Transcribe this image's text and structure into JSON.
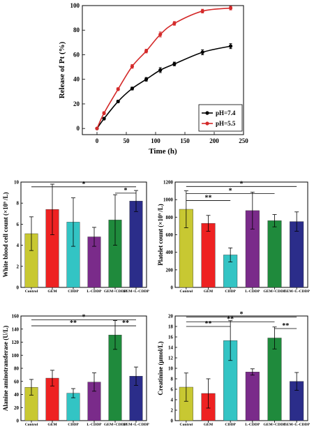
{
  "chart_data": [
    {
      "type": "line",
      "xlabel": "Time (h)",
      "ylabel": "Release of Pt (%)",
      "xlim": [
        -25,
        250
      ],
      "ylim": [
        -5,
        100
      ],
      "xticks": [
        0,
        50,
        100,
        150,
        200,
        250
      ],
      "yticks": [
        0,
        20,
        40,
        60,
        80,
        100
      ],
      "legend_position": "bottom-right",
      "series": [
        {
          "name": "pH=7.4",
          "color": "#000000",
          "x": [
            0,
            12,
            36,
            60,
            84,
            108,
            132,
            180,
            228
          ],
          "y": [
            0,
            8,
            22,
            32.5,
            40,
            47.5,
            52.5,
            62,
            67
          ],
          "err": [
            0.5,
            1,
            1,
            1.2,
            1.5,
            2,
            1.5,
            2,
            2
          ]
        },
        {
          "name": "pH=5.5",
          "color": "#d42a2a",
          "x": [
            0,
            12,
            36,
            60,
            84,
            108,
            132,
            180,
            228
          ],
          "y": [
            0,
            12.5,
            32,
            50.5,
            63,
            76.5,
            85.5,
            95.5,
            98
          ],
          "err": [
            0.5,
            1.2,
            1.2,
            1.5,
            1.5,
            2,
            1.5,
            1.5,
            1.5
          ]
        }
      ]
    },
    {
      "type": "bar",
      "ylabel": "White blood cell count (×10⁹ /L)",
      "ylim": [
        0,
        10
      ],
      "yticks": [
        0,
        2,
        4,
        6,
        8,
        10
      ],
      "categories": [
        "Control",
        "GEM",
        "CDDP",
        "L-CDDP",
        "GEM+CDDP",
        "GEM+L-CDDP"
      ],
      "values": [
        5.1,
        7.4,
        6.2,
        4.8,
        6.4,
        8.2
      ],
      "errors": [
        1.6,
        2.4,
        2.3,
        0.9,
        2.4,
        1.0
      ],
      "colors": [
        "#c8c832",
        "#ee2222",
        "#33c4c4",
        "#7a2b8a",
        "#1f8a3c",
        "#2b2d8a"
      ],
      "significance": [
        {
          "from": 0,
          "to": 5,
          "label": "*",
          "y": 9.55
        },
        {
          "from": 4,
          "to": 5,
          "label": "*",
          "y": 8.95
        }
      ]
    },
    {
      "type": "bar",
      "ylabel": "Platelet count (×10⁹ /L)",
      "ylim": [
        0,
        1200
      ],
      "yticks": [
        0,
        200,
        400,
        600,
        800,
        1000,
        1200
      ],
      "categories": [
        "Control",
        "GEM",
        "CDDP",
        "L-CDDP",
        "GEM+CDDP",
        "GEM+L-CDDP"
      ],
      "values": [
        890,
        730,
        370,
        875,
        760,
        750
      ],
      "errors": [
        210,
        90,
        80,
        210,
        70,
        110
      ],
      "colors": [
        "#c8c832",
        "#ee2222",
        "#33c4c4",
        "#7a2b8a",
        "#1f8a3c",
        "#2b2d8a"
      ],
      "significance": [
        {
          "from": 0,
          "to": 5,
          "label": "*",
          "y": 1150
        },
        {
          "from": 0,
          "to": 4,
          "label": "*",
          "y": 1070
        },
        {
          "from": 0,
          "to": 2,
          "label": "**",
          "y": 990
        }
      ]
    },
    {
      "type": "bar",
      "ylabel": "Alanine aminotransferase (U/L)",
      "ylim": [
        0,
        160
      ],
      "yticks": [
        0,
        20,
        40,
        60,
        80,
        100,
        120,
        140,
        160
      ],
      "categories": [
        "Control",
        "GEM",
        "CDDP",
        "L-CDDP",
        "GEM+CDDP",
        "GEM+L-CDDP"
      ],
      "values": [
        51,
        65,
        42,
        59,
        131,
        68
      ],
      "errors": [
        12,
        12,
        7,
        14,
        22,
        14
      ],
      "colors": [
        "#c8c832",
        "#ee2222",
        "#33c4c4",
        "#7a2b8a",
        "#1f8a3c",
        "#2b2d8a"
      ],
      "significance": [
        {
          "from": 0,
          "to": 5,
          "label": "*",
          "y": 154
        },
        {
          "from": 0,
          "to": 4,
          "label": "**",
          "y": 145
        },
        {
          "from": 4,
          "to": 5,
          "label": "**",
          "y": 145
        }
      ]
    },
    {
      "type": "bar",
      "ylabel": "Creatinine (μmol/L)",
      "ylim": [
        0,
        20
      ],
      "yticks": [
        0,
        2,
        4,
        6,
        8,
        10,
        12,
        14,
        16,
        18,
        20
      ],
      "categories": [
        "Control",
        "GEM",
        "CDDP",
        "L-CDDP",
        "GEM+CDDP",
        "GEM+L-CDDP"
      ],
      "values": [
        6.4,
        5.2,
        15.3,
        9.3,
        15.8,
        7.5
      ],
      "errors": [
        2.7,
        2.8,
        3.8,
        0.6,
        2.1,
        1.7
      ],
      "colors": [
        "#c8c832",
        "#ee2222",
        "#33c4c4",
        "#7a2b8a",
        "#1f8a3c",
        "#2b2d8a"
      ],
      "significance": [
        {
          "from": 0,
          "to": 5,
          "label": "*",
          "y": 19.8
        },
        {
          "from": 0,
          "to": 4,
          "label": "**",
          "y": 18.9
        },
        {
          "from": 0,
          "to": 2,
          "label": "**",
          "y": 18.0
        },
        {
          "from": 4,
          "to": 5,
          "label": "**",
          "y": 17.6
        }
      ]
    }
  ]
}
